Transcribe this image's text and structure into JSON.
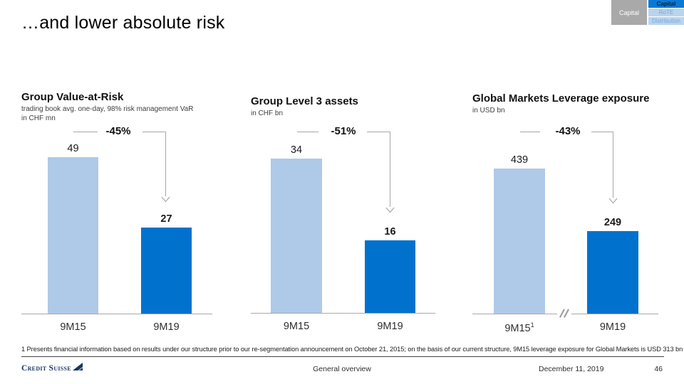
{
  "slide": {
    "title": "…and lower absolute risk",
    "footnote": "1 Presents financial information based on results under our structure prior to our re-segmentation announcement on October 21, 2015; on the basis of our current structure, 9M15 leverage exposure for Global Markets is USD 313 bn",
    "footer": {
      "brand": "Credit Suisse",
      "section": "General overview",
      "date": "December 11, 2019",
      "page": "46"
    }
  },
  "nav": {
    "section_label": "Capital",
    "tabs": [
      {
        "label": "Capital",
        "active": true
      },
      {
        "label": "RoTE",
        "active": false
      },
      {
        "label": "Distribution",
        "active": false
      }
    ]
  },
  "colors": {
    "bar_light": "#afc9e8",
    "bar_dark": "#0072ce",
    "arrow_gray": "#a6a6a6",
    "nav_gray_bg": "#a9a9a9",
    "nav_active_bg": "#0b79d3",
    "nav_active_text": "#0a2240",
    "nav_inactive_bg": "#b9d4ee",
    "nav_inactive_text": "#7aa7d8",
    "brand_navy": "#13365e"
  },
  "chart_data": [
    {
      "type": "bar",
      "title": "Group Value-at-Risk",
      "subtitle": "trading book avg. one-day, 98% risk management VaR",
      "unit": "in CHF mn",
      "categories": [
        "9M15",
        "9M19"
      ],
      "values": [
        49,
        27
      ],
      "delta_label": "-45%",
      "legend_position": "none",
      "grid": false
    },
    {
      "type": "bar",
      "title": "Group Level 3 assets",
      "subtitle": "",
      "unit": "in CHF bn",
      "categories": [
        "9M15",
        "9M19"
      ],
      "values": [
        34,
        16
      ],
      "delta_label": "-51%",
      "legend_position": "none",
      "grid": false
    },
    {
      "type": "bar",
      "title": "Global Markets Leverage exposure",
      "subtitle": "",
      "unit": "in USD bn",
      "categories": [
        "9M15",
        "9M19"
      ],
      "footnote_marker": "1",
      "values": [
        439,
        249
      ],
      "delta_label": "-43%",
      "axis_break": true,
      "legend_position": "none",
      "grid": false
    }
  ]
}
